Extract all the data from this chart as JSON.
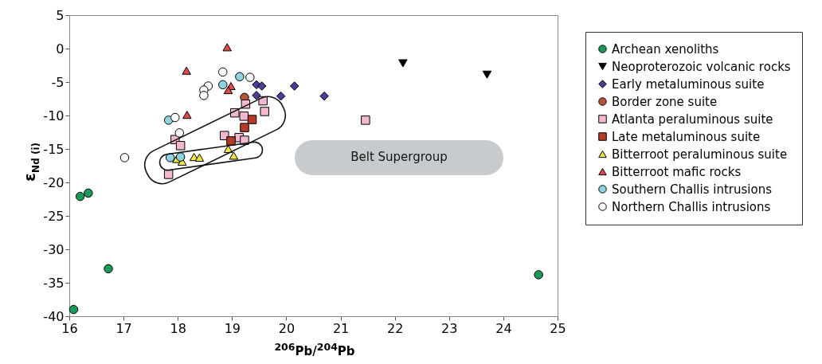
{
  "chart_data": {
    "type": "scatter",
    "xlabel": "$^{206}$Pb/$^{204}$Pb",
    "ylabel": "ε$_{Nd (i)}$",
    "xlim": [
      16,
      25
    ],
    "xticks": [
      16,
      17,
      18,
      19,
      20,
      21,
      22,
      23,
      24,
      25
    ],
    "ylim": [
      -40,
      5
    ],
    "yticks": [
      -40,
      -35,
      -30,
      -25,
      -20,
      -15,
      -10,
      -5,
      0,
      5
    ],
    "grid": false,
    "legend": "right",
    "annotations": [
      "Belt Supergroup"
    ],
    "series": [
      {
        "name": "Archean xenoliths",
        "color": "#1a9a5a",
        "marker": "circle",
        "x": [
          16.2,
          16.35,
          16.72,
          16.08,
          24.65
        ],
        "values": [
          -22.1,
          -21.6,
          -32.9,
          -39.0,
          -33.8
        ]
      },
      {
        "name": "Neoproterozoic volcanic rocks",
        "color": "#000000",
        "marker": "triangle-down",
        "x": [
          22.15,
          23.7
        ],
        "values": [
          -2.2,
          -3.9
        ]
      },
      {
        "name": "Early metaluminous suite",
        "color": "#4b3d9a",
        "marker": "diamond",
        "x": [
          19.45,
          19.55,
          19.45,
          19.9,
          20.15,
          20.7
        ],
        "values": [
          -5.4,
          -5.6,
          -7.0,
          -7.1,
          -5.6,
          -7.1
        ]
      },
      {
        "name": "Border zone suite",
        "color": "#b5533a",
        "marker": "circle",
        "x": [
          19.23
        ],
        "values": [
          -7.3
        ]
      },
      {
        "name": "Atlanta peraluminous suite",
        "color": "#f2b8d0",
        "marker": "square",
        "x": [
          19.25,
          19.57,
          19.6,
          19.05,
          19.22,
          18.86,
          19.13,
          19.23,
          17.95,
          18.05,
          17.83,
          21.46
        ],
        "values": [
          -8.3,
          -7.8,
          -9.4,
          -9.6,
          -10.1,
          -13.0,
          -13.3,
          -13.7,
          -13.6,
          -14.5,
          -18.8,
          -10.7
        ]
      },
      {
        "name": "Late metaluminous suite",
        "color": "#b53a2a",
        "marker": "square",
        "x": [
          19.37,
          19.23,
          18.98
        ],
        "values": [
          -10.6,
          -11.8,
          -13.8
        ]
      },
      {
        "name": "Bitterroot peraluminous suite",
        "color": "#f5e640",
        "marker": "triangle",
        "x": [
          18.93,
          19.03,
          18.3,
          18.4,
          17.98,
          18.08
        ],
        "values": [
          -15.0,
          -16.0,
          -16.2,
          -16.3,
          -16.5,
          -16.9
        ]
      },
      {
        "name": "Bitterroot mafic rocks",
        "color": "#e04a4a",
        "marker": "triangle",
        "x": [
          18.91,
          18.16,
          18.98,
          18.93,
          18.17
        ],
        "values": [
          0.2,
          -3.3,
          -5.6,
          -6.2,
          -9.9
        ]
      },
      {
        "name": "Southern Challis intrusions",
        "color": "#8fd3e0",
        "marker": "circle",
        "x": [
          19.14,
          18.83,
          17.83,
          17.86,
          18.05
        ],
        "values": [
          -4.2,
          -5.4,
          -10.7,
          -16.3,
          -16.2
        ]
      },
      {
        "name": "Northern Challis intrusions",
        "color": "#ffffff",
        "marker": "circle",
        "x": [
          18.83,
          19.33,
          18.56,
          18.48,
          18.48,
          17.95,
          18.03,
          17.02
        ],
        "values": [
          -3.5,
          -4.3,
          -5.6,
          -6.2,
          -7.0,
          -10.3,
          -12.6,
          -16.3
        ]
      }
    ]
  }
}
